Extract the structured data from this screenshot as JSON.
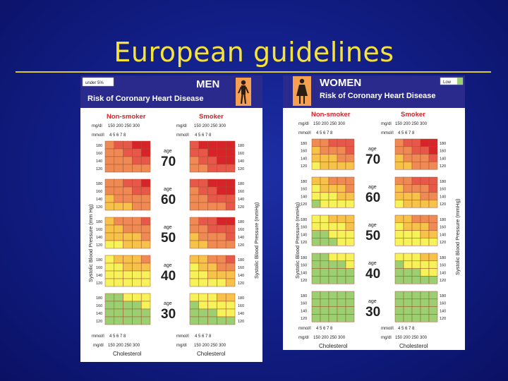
{
  "slide": {
    "title": "European guidelines"
  },
  "colors": {
    "title": "#f5e23a",
    "header_blue": "#2a2a8c",
    "risk_scale": [
      "#9ccf72",
      "#f6f25a",
      "#f6c24a",
      "#ef8a54",
      "#e8584a",
      "#d8232a"
    ]
  },
  "men": {
    "legend": "under 5%",
    "sex_label": "MEN",
    "subtitle": "Risk of Coronary Heart Disease",
    "nonsmoker_label": "Non-smoker",
    "smoker_label": "Smoker",
    "mgdl_label": "mg/dl",
    "mgdl_ticks": "150 200 250 300",
    "mmol_label": "mmol/l",
    "mmol_ticks": "4 5 6 7 8",
    "bp_ticks": [
      "180",
      "160",
      "140",
      "120"
    ],
    "ylabel_left": "Systolic Blood Pressure (mm Hg)",
    "ylabel_right": "Systolic Blood Pressure (mmHg)",
    "age_word": "age",
    "ages": [
      "70",
      "60",
      "50",
      "40",
      "30"
    ],
    "xlabel": "Cholesterol"
  },
  "women": {
    "legend": "Low",
    "sex_label": "WOMEN",
    "subtitle": "Risk of Coronary Heart Disease",
    "nonsmoker_label": "Non-smoker",
    "smoker_label": "Smoker",
    "mgdl_label": "mg/dl",
    "mgdl_ticks": "150 200 250 300",
    "mmol_label": "mmol/l",
    "mmol_ticks": "4 5 6 7 8",
    "bp_ticks": [
      "180",
      "160",
      "140",
      "120"
    ],
    "ylabel_left": "Systolic Blood Pressure (mmHg)",
    "ylabel_right": "Systolic Blood Pressure (mmHg)",
    "age_word": "age",
    "ages": [
      "70",
      "60",
      "50",
      "40",
      "30"
    ],
    "xlabel": "Cholesterol"
  },
  "risk_levels": {
    "men": [
      {
        "non": [
          [
            3,
            4,
            4,
            5,
            5
          ],
          [
            3,
            3,
            4,
            4,
            5
          ],
          [
            3,
            3,
            3,
            4,
            4
          ],
          [
            3,
            3,
            3,
            3,
            3
          ]
        ],
        "smk": [
          [
            4,
            5,
            5,
            5,
            5
          ],
          [
            4,
            4,
            5,
            5,
            5
          ],
          [
            3,
            4,
            4,
            5,
            5
          ],
          [
            3,
            3,
            4,
            4,
            4
          ]
        ]
      },
      {
        "non": [
          [
            3,
            3,
            4,
            4,
            5
          ],
          [
            3,
            3,
            3,
            4,
            4
          ],
          [
            2,
            3,
            3,
            3,
            3
          ],
          [
            2,
            2,
            2,
            3,
            3
          ]
        ],
        "smk": [
          [
            4,
            4,
            5,
            5,
            5
          ],
          [
            3,
            4,
            4,
            5,
            5
          ],
          [
            3,
            3,
            4,
            4,
            4
          ],
          [
            3,
            3,
            3,
            3,
            4
          ]
        ]
      },
      {
        "non": [
          [
            2,
            3,
            3,
            3,
            4
          ],
          [
            2,
            2,
            3,
            3,
            3
          ],
          [
            2,
            2,
            2,
            2,
            3
          ],
          [
            1,
            1,
            2,
            2,
            2
          ]
        ],
        "smk": [
          [
            3,
            4,
            4,
            5,
            5
          ],
          [
            3,
            3,
            4,
            4,
            4
          ],
          [
            2,
            3,
            3,
            3,
            4
          ],
          [
            2,
            2,
            3,
            3,
            3
          ]
        ]
      },
      {
        "non": [
          [
            1,
            2,
            2,
            2,
            3
          ],
          [
            1,
            1,
            2,
            2,
            2
          ],
          [
            1,
            1,
            1,
            1,
            1
          ],
          [
            1,
            1,
            1,
            1,
            1
          ]
        ],
        "smk": [
          [
            2,
            2,
            3,
            3,
            4
          ],
          [
            1,
            2,
            2,
            3,
            3
          ],
          [
            1,
            1,
            2,
            2,
            2
          ],
          [
            1,
            1,
            1,
            1,
            2
          ]
        ]
      },
      {
        "non": [
          [
            0,
            0,
            1,
            1,
            1
          ],
          [
            0,
            0,
            0,
            0,
            1
          ],
          [
            0,
            0,
            0,
            0,
            0
          ],
          [
            0,
            0,
            0,
            0,
            0
          ]
        ],
        "smk": [
          [
            1,
            1,
            1,
            2,
            2
          ],
          [
            0,
            1,
            1,
            1,
            1
          ],
          [
            0,
            0,
            0,
            1,
            1
          ],
          [
            0,
            0,
            0,
            0,
            0
          ]
        ]
      }
    ],
    "women": [
      {
        "non": [
          [
            3,
            3,
            4,
            4,
            4
          ],
          [
            2,
            3,
            3,
            3,
            4
          ],
          [
            2,
            2,
            2,
            3,
            3
          ],
          [
            1,
            2,
            2,
            2,
            2
          ]
        ],
        "smk": [
          [
            3,
            4,
            4,
            5,
            5
          ],
          [
            3,
            3,
            4,
            4,
            5
          ],
          [
            2,
            3,
            3,
            3,
            4
          ],
          [
            2,
            2,
            3,
            3,
            3
          ]
        ]
      },
      {
        "non": [
          [
            2,
            2,
            3,
            3,
            3
          ],
          [
            1,
            2,
            2,
            2,
            3
          ],
          [
            1,
            1,
            1,
            2,
            2
          ],
          [
            0,
            1,
            1,
            1,
            1
          ]
        ],
        "smk": [
          [
            3,
            3,
            4,
            4,
            4
          ],
          [
            2,
            3,
            3,
            3,
            4
          ],
          [
            2,
            2,
            2,
            3,
            3
          ],
          [
            1,
            2,
            2,
            2,
            2
          ]
        ]
      },
      {
        "non": [
          [
            1,
            1,
            2,
            2,
            2
          ],
          [
            1,
            1,
            1,
            1,
            2
          ],
          [
            0,
            0,
            1,
            1,
            1
          ],
          [
            0,
            0,
            0,
            1,
            1
          ]
        ],
        "smk": [
          [
            2,
            2,
            3,
            3,
            3
          ],
          [
            1,
            2,
            2,
            2,
            3
          ],
          [
            1,
            1,
            1,
            2,
            2
          ],
          [
            1,
            1,
            1,
            1,
            1
          ]
        ]
      },
      {
        "non": [
          [
            0,
            0,
            1,
            1,
            1
          ],
          [
            0,
            0,
            0,
            0,
            1
          ],
          [
            0,
            0,
            0,
            0,
            0
          ],
          [
            0,
            0,
            0,
            0,
            0
          ]
        ],
        "smk": [
          [
            1,
            1,
            1,
            2,
            2
          ],
          [
            0,
            1,
            1,
            1,
            1
          ],
          [
            0,
            0,
            0,
            1,
            1
          ],
          [
            0,
            0,
            0,
            0,
            0
          ]
        ]
      },
      {
        "non": [
          [
            0,
            0,
            0,
            0,
            0
          ],
          [
            0,
            0,
            0,
            0,
            0
          ],
          [
            0,
            0,
            0,
            0,
            0
          ],
          [
            0,
            0,
            0,
            0,
            0
          ]
        ],
        "smk": [
          [
            0,
            0,
            0,
            0,
            0
          ],
          [
            0,
            0,
            0,
            0,
            0
          ],
          [
            0,
            0,
            0,
            0,
            0
          ],
          [
            0,
            0,
            0,
            0,
            0
          ]
        ]
      }
    ]
  }
}
